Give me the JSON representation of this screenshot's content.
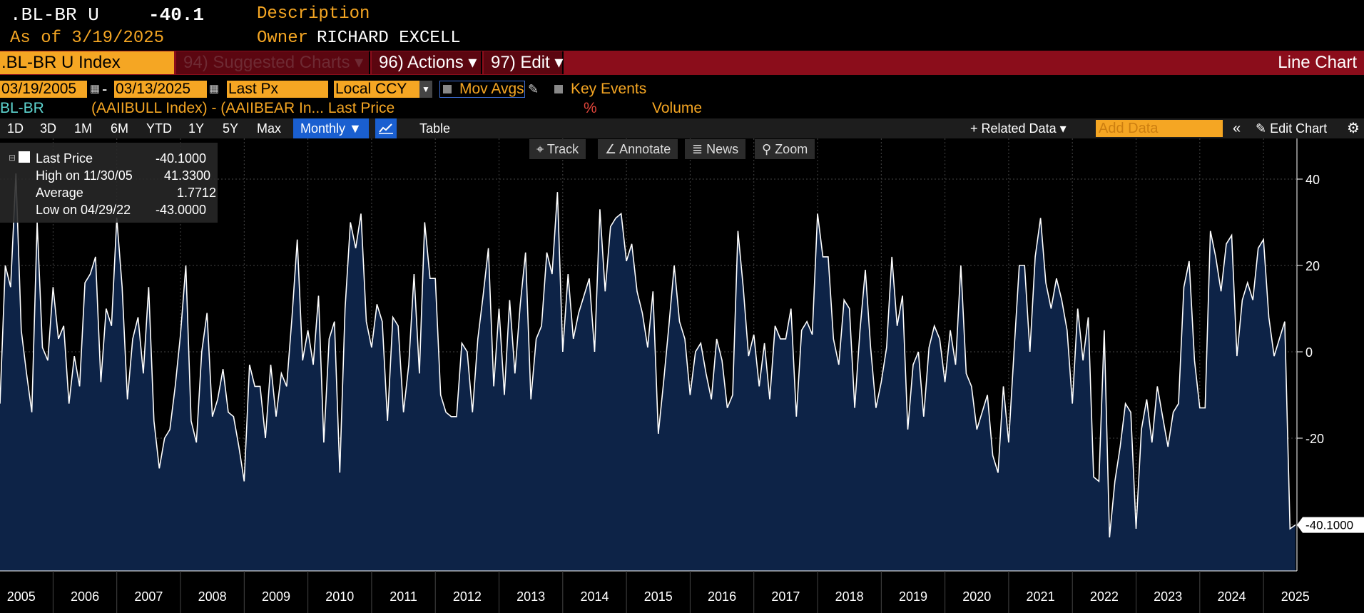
{
  "header": {
    "ticker": ".BL-BR U",
    "last_value": "-40.1",
    "as_of": "As of 3/19/2025",
    "description_label": "Description",
    "owner_label": "Owner",
    "owner_value": "RICHARD EXCELL"
  },
  "toolbar": {
    "index_name": ".BL-BR U Index",
    "suggested_charts": "94) Suggested Charts ▾",
    "actions": "96) Actions ▾",
    "edit": "97) Edit ▾",
    "chart_type": "Line Chart"
  },
  "controls": {
    "date_start": "03/19/2005",
    "date_end": "03/13/2025",
    "field": "Last Px",
    "currency": "Local CCY",
    "mov_avgs": "Mov Avgs",
    "key_events": "Key Events"
  },
  "series_row": {
    "name": "BL-BR",
    "expression": "(AAIIBULL Index) - (AAIIBEAR In...  Last Price",
    "pct": "%",
    "volume": "Volume"
  },
  "periods": [
    "1D",
    "3D",
    "1M",
    "6M",
    "YTD",
    "1Y",
    "5Y",
    "Max"
  ],
  "period_selected": "Monthly ▼",
  "table_label": "Table",
  "related_data": "+ Related Data ▾",
  "add_data_placeholder": "Add Data",
  "edit_chart": "Edit Chart",
  "chart_tools": [
    "Track",
    "Annotate",
    "News",
    "Zoom"
  ],
  "legend": {
    "last_price_label": "Last Price",
    "last_price_value": "-40.1000",
    "high_label": "High on 11/30/05",
    "high_value": "41.3300",
    "average_label": "Average",
    "average_value": "1.7712",
    "low_label": "Low on 04/29/22",
    "low_value": "-43.0000"
  },
  "colors": {
    "accent_orange": "#f5a623",
    "toolbar_red": "#8b0d1b",
    "chart_fill": "#0d2347",
    "line": "#ffffff",
    "selected_blue": "#1a5fd0"
  },
  "chart_data": {
    "type": "area",
    "x_label_years": [
      "2005",
      "2006",
      "2007",
      "2008",
      "2009",
      "2010",
      "2011",
      "2012",
      "2013",
      "2014",
      "2015",
      "2016",
      "2017",
      "2018",
      "2019",
      "2020",
      "2021",
      "2022",
      "2023",
      "2024",
      "2025"
    ],
    "x_start": "2005-03",
    "frequency": "monthly",
    "ylim": [
      -50,
      50
    ],
    "y_ticks": [
      40,
      20,
      0,
      -20
    ],
    "last_value_label": "-40.1000",
    "grid": true,
    "values": [
      -12,
      20,
      15,
      41.33,
      5,
      -5,
      -14,
      30,
      1,
      -2,
      15,
      3,
      6,
      -12,
      -1,
      -8,
      16,
      18,
      22,
      -7,
      10,
      6,
      31,
      15,
      -11,
      3,
      8,
      -5,
      15,
      -16,
      -27,
      -20,
      -18,
      -8,
      4,
      20,
      -16,
      -21,
      0,
      9,
      -15,
      -11,
      -4,
      -14,
      -15,
      -22,
      -30,
      -3,
      -8,
      -8,
      -20,
      -3,
      -15,
      -5,
      -8,
      8,
      26,
      -2,
      5,
      -3,
      13,
      -21,
      3,
      7,
      -28,
      10,
      30,
      24,
      32,
      7,
      1,
      11,
      7,
      -16,
      8,
      6,
      -14,
      -3,
      18,
      -5,
      30,
      17,
      17,
      -10,
      -14,
      -15,
      -15,
      2,
      0,
      -14,
      3,
      13,
      24,
      -8,
      10,
      -10,
      12,
      -5,
      11,
      23,
      -11,
      3,
      6,
      23,
      18,
      37,
      0,
      18,
      3,
      9,
      13,
      17,
      0,
      33,
      14,
      29,
      31,
      32,
      21,
      25,
      14,
      9,
      1,
      14,
      -19,
      -7,
      6,
      20,
      7,
      3,
      -10,
      0,
      2,
      -5,
      -11,
      3,
      -2,
      -13,
      -10,
      28,
      15,
      -1,
      4,
      -8,
      2,
      -11,
      6,
      3,
      3,
      10,
      -15,
      5,
      7,
      4,
      32,
      22,
      22,
      3,
      -3,
      12,
      10,
      -13,
      5,
      19,
      1,
      -13,
      -7,
      1,
      22,
      6,
      13,
      -18,
      -3,
      0,
      -15,
      1,
      6,
      3,
      -7,
      5,
      -3,
      20,
      -5,
      -8,
      -18,
      -14,
      -10,
      -24,
      -28,
      -8,
      -21,
      0,
      20,
      20,
      0,
      22,
      31,
      16,
      10,
      17,
      12,
      5,
      -12,
      10,
      -2,
      8,
      -29,
      -30,
      5,
      -43,
      -30,
      -22,
      -12,
      -14,
      -41,
      -18,
      -11,
      -21,
      -8,
      -15,
      -22,
      -14,
      -12,
      15,
      21,
      -2,
      -13,
      -13,
      28,
      22,
      14,
      25,
      27,
      -1,
      12,
      16,
      12,
      24,
      26,
      8,
      -1,
      3,
      7,
      -41,
      -40.1
    ]
  }
}
